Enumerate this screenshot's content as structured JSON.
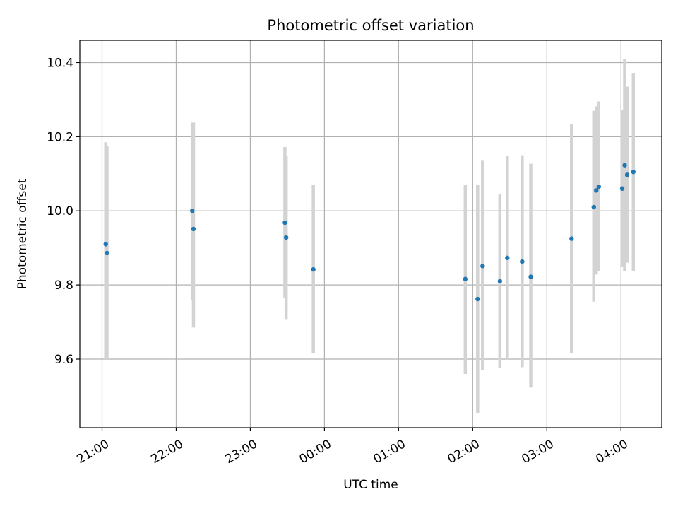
{
  "chart_data": {
    "type": "scatter",
    "title": "Photometric offset variation",
    "xlabel": "UTC time",
    "ylabel": "Photometric offset",
    "x_unit": "UTC time (hours after 21:00 on the first night)",
    "xlim": [
      -0.3,
      7.55
    ],
    "ylim": [
      9.415,
      10.46
    ],
    "grid": true,
    "legend": "none",
    "x_ticks": [
      {
        "value": 0,
        "label": "21:00"
      },
      {
        "value": 1,
        "label": "22:00"
      },
      {
        "value": 2,
        "label": "23:00"
      },
      {
        "value": 3,
        "label": "00:00"
      },
      {
        "value": 4,
        "label": "01:00"
      },
      {
        "value": 5,
        "label": "02:00"
      },
      {
        "value": 6,
        "label": "03:00"
      },
      {
        "value": 7,
        "label": "04:00"
      }
    ],
    "y_ticks": [
      {
        "value": 9.6,
        "label": "9.6"
      },
      {
        "value": 9.8,
        "label": "9.8"
      },
      {
        "value": 10.0,
        "label": "10.0"
      },
      {
        "value": 10.2,
        "label": "10.2"
      },
      {
        "value": 10.4,
        "label": "10.4"
      }
    ],
    "colors": {
      "point": "#1f77b4",
      "errorbar": "#d3d3d3",
      "grid": "#b0b0b0",
      "axis": "#000000"
    },
    "series": [
      {
        "points": [
          {
            "time": "21:03",
            "y": 9.91,
            "yerr_low": 9.6,
            "yerr_high": 10.185
          },
          {
            "time": "21:04",
            "y": 9.886,
            "yerr_low": 9.6,
            "yerr_high": 10.175
          },
          {
            "time": "22:13",
            "y": 10.0,
            "yerr_low": 9.76,
            "yerr_high": 10.238
          },
          {
            "time": "22:14",
            "y": 9.951,
            "yerr_low": 9.685,
            "yerr_high": 10.238
          },
          {
            "time": "23:28",
            "y": 9.968,
            "yerr_low": 9.765,
            "yerr_high": 10.172
          },
          {
            "time": "23:29",
            "y": 9.928,
            "yerr_low": 9.708,
            "yerr_high": 10.148
          },
          {
            "time": "23:51",
            "y": 9.842,
            "yerr_low": 9.615,
            "yerr_high": 10.07
          },
          {
            "time": "01:54",
            "y": 9.816,
            "yerr_low": 9.56,
            "yerr_high": 10.07
          },
          {
            "time": "02:04",
            "y": 9.762,
            "yerr_low": 9.455,
            "yerr_high": 10.07
          },
          {
            "time": "02:08",
            "y": 9.851,
            "yerr_low": 9.57,
            "yerr_high": 10.135
          },
          {
            "time": "02:22",
            "y": 9.81,
            "yerr_low": 9.575,
            "yerr_high": 10.045
          },
          {
            "time": "02:28",
            "y": 9.873,
            "yerr_low": 9.598,
            "yerr_high": 10.148
          },
          {
            "time": "02:40",
            "y": 9.863,
            "yerr_low": 9.578,
            "yerr_high": 10.15
          },
          {
            "time": "02:47",
            "y": 9.822,
            "yerr_low": 9.523,
            "yerr_high": 10.127
          },
          {
            "time": "03:20",
            "y": 9.925,
            "yerr_low": 9.615,
            "yerr_high": 10.235
          },
          {
            "time": "03:38",
            "y": 10.01,
            "yerr_low": 9.755,
            "yerr_high": 10.27
          },
          {
            "time": "03:40",
            "y": 10.055,
            "yerr_low": 9.828,
            "yerr_high": 10.282
          },
          {
            "time": "03:42",
            "y": 10.065,
            "yerr_low": 9.838,
            "yerr_high": 10.295
          },
          {
            "time": "04:01",
            "y": 10.06,
            "yerr_low": 9.85,
            "yerr_high": 10.272
          },
          {
            "time": "04:03",
            "y": 10.123,
            "yerr_low": 9.838,
            "yerr_high": 10.41
          },
          {
            "time": "04:05",
            "y": 10.097,
            "yerr_low": 9.86,
            "yerr_high": 10.335
          },
          {
            "time": "04:10",
            "y": 10.105,
            "yerr_low": 9.838,
            "yerr_high": 10.372
          }
        ]
      }
    ]
  }
}
